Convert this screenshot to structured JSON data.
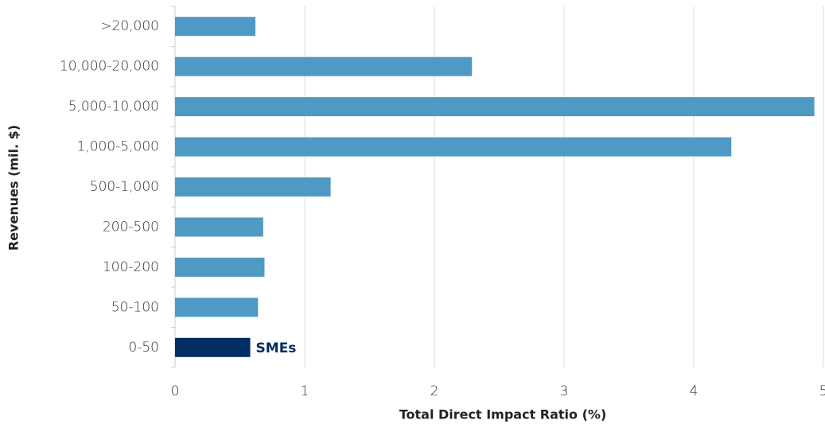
{
  "chart_data": {
    "type": "hbar",
    "xlabel": "Total Direct Impact Ratio (%)",
    "ylabel": "Revenues (mil. $)",
    "categories": [
      ">20,000",
      "10,000-20,000",
      "5,000-10,000",
      "1,000-5,000",
      "500-1,000",
      "200-500",
      "100-200",
      "50-100",
      "0-50"
    ],
    "values": [
      0.62,
      2.29,
      4.93,
      4.29,
      1.2,
      0.68,
      0.69,
      0.64,
      0.58
    ],
    "colors": [
      "#4f9ac4",
      "#4f9ac4",
      "#4f9ac4",
      "#4f9ac4",
      "#4f9ac4",
      "#4f9ac4",
      "#4f9ac4",
      "#4f9ac4",
      "#002d62"
    ],
    "annotation": {
      "text": "SMEs",
      "category": "0-50",
      "color": "#002d62"
    },
    "xlim": [
      0,
      5
    ],
    "xticks": [
      0,
      1,
      2,
      3,
      4,
      5
    ],
    "grid": true
  }
}
